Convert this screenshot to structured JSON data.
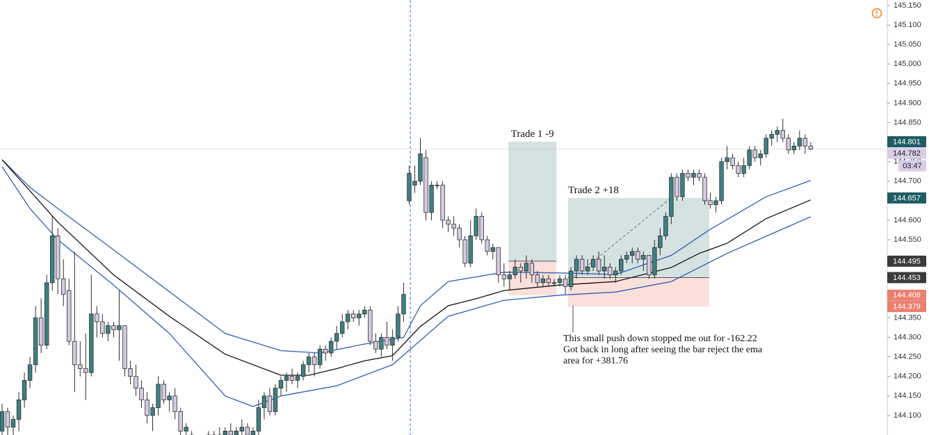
{
  "chart_data": {
    "type": "candlestick",
    "up_color": "#3f8084",
    "down_color": "#d6c9e2",
    "outline_color": "#2b2b2b",
    "candles": [
      [
        144.06,
        144.13,
        144.05,
        144.11
      ],
      [
        144.11,
        144.12,
        144.05,
        144.07
      ],
      [
        144.07,
        144.1,
        144.05,
        144.09
      ],
      [
        144.09,
        144.16,
        144.06,
        144.14
      ],
      [
        144.14,
        144.21,
        144.12,
        144.19
      ],
      [
        144.19,
        144.25,
        144.17,
        144.23
      ],
      [
        144.23,
        144.38,
        144.21,
        144.35
      ],
      [
        144.35,
        144.4,
        144.26,
        144.28
      ],
      [
        144.28,
        144.46,
        144.27,
        144.44
      ],
      [
        144.44,
        144.61,
        144.42,
        144.56
      ],
      [
        144.56,
        144.58,
        144.41,
        144.45
      ],
      [
        144.45,
        144.5,
        144.38,
        144.41
      ],
      [
        144.42,
        144.45,
        144.28,
        144.29
      ],
      [
        144.29,
        144.52,
        144.16,
        144.23
      ],
      [
        144.23,
        144.29,
        144.2,
        144.22
      ],
      [
        144.22,
        144.31,
        144.14,
        144.21
      ],
      [
        144.21,
        144.46,
        144.2,
        144.36
      ],
      [
        144.36,
        144.38,
        144.3,
        144.34
      ],
      [
        144.34,
        144.36,
        144.3,
        144.31
      ],
      [
        144.31,
        144.34,
        144.29,
        144.33
      ],
      [
        144.33,
        144.34,
        144.3,
        144.32
      ],
      [
        144.32,
        144.42,
        144.24,
        144.33
      ],
      [
        144.33,
        144.33,
        144.2,
        144.22
      ],
      [
        144.22,
        144.24,
        144.18,
        144.2
      ],
      [
        144.2,
        144.23,
        144.15,
        144.17
      ],
      [
        144.17,
        144.19,
        144.12,
        144.14
      ],
      [
        144.14,
        144.16,
        144.08,
        144.1
      ],
      [
        144.1,
        144.13,
        144.06,
        144.12
      ],
      [
        144.12,
        144.2,
        144.1,
        144.18
      ],
      [
        144.18,
        144.19,
        144.13,
        144.14
      ],
      [
        144.14,
        144.16,
        144.11,
        144.15
      ],
      [
        144.15,
        144.17,
        144.09,
        144.11
      ],
      [
        144.11,
        144.12,
        144.05,
        144.06
      ],
      [
        144.06,
        144.08,
        144.04,
        144.07
      ],
      [
        144.05,
        144.06,
        144.03,
        144.04
      ],
      [
        144.04,
        144.05,
        144.02,
        144.03
      ],
      [
        144.03,
        144.05,
        144.02,
        144.04
      ],
      [
        144.04,
        144.06,
        144.03,
        144.05
      ],
      [
        144.05,
        144.06,
        144.03,
        144.04
      ],
      [
        144.04,
        144.07,
        144.03,
        144.05
      ],
      [
        144.05,
        144.07,
        144.03,
        144.06
      ],
      [
        144.06,
        144.08,
        144.04,
        144.05
      ],
      [
        144.05,
        144.07,
        144.03,
        144.06
      ],
      [
        144.06,
        144.09,
        144.05,
        144.07
      ],
      [
        144.07,
        144.08,
        144.04,
        144.05
      ],
      [
        144.05,
        144.07,
        144.03,
        144.06
      ],
      [
        144.06,
        144.14,
        144.05,
        144.12
      ],
      [
        144.12,
        144.16,
        144.09,
        144.15
      ],
      [
        144.15,
        144.17,
        144.1,
        144.11
      ],
      [
        144.11,
        144.18,
        144.1,
        144.17
      ],
      [
        144.17,
        144.2,
        144.15,
        144.19
      ],
      [
        144.19,
        144.21,
        144.16,
        144.2
      ],
      [
        144.2,
        144.22,
        144.18,
        144.19
      ],
      [
        144.19,
        144.21,
        144.17,
        144.2
      ],
      [
        144.2,
        144.24,
        144.19,
        144.23
      ],
      [
        144.23,
        144.26,
        144.21,
        144.25
      ],
      [
        144.25,
        144.26,
        144.2,
        144.23
      ],
      [
        144.23,
        144.28,
        144.22,
        144.27
      ],
      [
        144.27,
        144.28,
        144.24,
        144.26
      ],
      [
        144.26,
        144.3,
        144.25,
        144.29
      ],
      [
        144.29,
        144.33,
        144.27,
        144.31
      ],
      [
        144.31,
        144.36,
        144.3,
        144.34
      ],
      [
        144.34,
        144.37,
        144.32,
        144.36
      ],
      [
        144.36,
        144.37,
        144.34,
        144.35
      ],
      [
        144.35,
        144.37,
        144.33,
        144.36
      ],
      [
        144.36,
        144.38,
        144.35,
        144.37
      ],
      [
        144.37,
        144.38,
        144.28,
        144.29
      ],
      [
        144.29,
        144.31,
        144.26,
        144.27
      ],
      [
        144.27,
        144.31,
        144.25,
        144.3
      ],
      [
        144.3,
        144.34,
        144.27,
        144.28
      ],
      [
        144.28,
        144.32,
        144.24,
        144.3
      ],
      [
        144.3,
        144.38,
        144.29,
        144.36
      ],
      [
        144.36,
        144.44,
        144.34,
        144.41
      ],
      [
        144.65,
        144.74,
        144.64,
        144.72
      ],
      [
        144.69,
        144.74,
        144.67,
        144.7
      ],
      [
        144.7,
        144.81,
        144.69,
        144.77
      ],
      [
        144.76,
        144.78,
        144.6,
        144.62
      ],
      [
        144.62,
        144.7,
        144.6,
        144.69
      ],
      [
        144.69,
        144.7,
        144.68,
        144.69
      ],
      [
        144.69,
        144.7,
        144.58,
        144.6
      ],
      [
        144.6,
        144.61,
        144.57,
        144.59
      ],
      [
        144.59,
        144.61,
        144.56,
        144.58
      ],
      [
        144.58,
        144.59,
        144.53,
        144.55
      ],
      [
        144.55,
        144.56,
        144.48,
        144.49
      ],
      [
        144.49,
        144.6,
        144.48,
        144.56
      ],
      [
        144.56,
        144.63,
        144.55,
        144.61
      ],
      [
        144.61,
        144.62,
        144.54,
        144.55
      ],
      [
        144.55,
        144.56,
        144.51,
        144.52
      ],
      [
        144.52,
        144.54,
        144.5,
        144.53
      ],
      [
        144.53,
        144.53,
        144.44,
        144.46
      ],
      [
        144.46,
        144.49,
        144.43,
        144.45
      ],
      [
        144.45,
        144.47,
        144.42,
        144.46
      ],
      [
        144.46,
        144.5,
        144.45,
        144.48
      ],
      [
        144.48,
        144.49,
        144.44,
        144.47
      ],
      [
        144.47,
        144.51,
        144.45,
        144.49
      ],
      [
        144.49,
        144.5,
        144.44,
        144.46
      ],
      [
        144.46,
        144.47,
        144.43,
        144.44
      ],
      [
        144.44,
        144.46,
        144.43,
        144.45
      ],
      [
        144.45,
        144.46,
        144.43,
        144.44
      ],
      [
        144.44,
        144.45,
        144.43,
        144.44
      ],
      [
        144.44,
        144.46,
        144.43,
        144.45
      ],
      [
        144.45,
        144.46,
        144.41,
        144.43
      ],
      [
        144.43,
        144.48,
        144.42,
        144.47
      ],
      [
        144.47,
        144.51,
        144.45,
        144.5
      ],
      [
        144.5,
        144.51,
        144.46,
        144.47
      ],
      [
        144.47,
        144.5,
        144.46,
        144.48
      ],
      [
        144.48,
        144.51,
        144.47,
        144.5
      ],
      [
        144.5,
        144.52,
        144.46,
        144.47
      ],
      [
        144.47,
        144.51,
        144.45,
        144.48
      ],
      [
        144.48,
        144.49,
        144.45,
        144.46
      ],
      [
        144.46,
        144.48,
        144.44,
        144.47
      ],
      [
        144.47,
        144.51,
        144.46,
        144.5
      ],
      [
        144.5,
        144.52,
        144.49,
        144.51
      ],
      [
        144.51,
        144.53,
        144.49,
        144.52
      ],
      [
        144.52,
        144.53,
        144.49,
        144.5
      ],
      [
        144.5,
        144.52,
        144.47,
        144.51
      ],
      [
        144.51,
        144.51,
        144.45,
        144.46
      ],
      [
        144.46,
        144.55,
        144.45,
        144.53
      ],
      [
        144.53,
        144.58,
        144.51,
        144.56
      ],
      [
        144.56,
        144.62,
        144.55,
        144.61
      ],
      [
        144.61,
        144.72,
        144.59,
        144.71
      ],
      [
        144.71,
        144.72,
        144.65,
        144.66
      ],
      [
        144.66,
        144.73,
        144.65,
        144.72
      ],
      [
        144.72,
        144.73,
        144.7,
        144.71
      ],
      [
        144.71,
        144.73,
        144.69,
        144.72
      ],
      [
        144.72,
        144.73,
        144.7,
        144.71
      ],
      [
        144.71,
        144.72,
        144.64,
        144.65
      ],
      [
        144.65,
        144.67,
        144.63,
        144.64
      ],
      [
        144.64,
        144.66,
        144.62,
        144.65
      ],
      [
        144.65,
        144.76,
        144.64,
        144.75
      ],
      [
        144.75,
        144.79,
        144.73,
        144.76
      ],
      [
        144.76,
        144.77,
        144.73,
        144.74
      ],
      [
        144.74,
        144.75,
        144.71,
        144.72
      ],
      [
        144.72,
        144.76,
        144.71,
        144.74
      ],
      [
        144.74,
        144.79,
        144.73,
        144.78
      ],
      [
        144.78,
        144.79,
        144.75,
        144.76
      ],
      [
        144.76,
        144.78,
        144.74,
        144.77
      ],
      [
        144.77,
        144.82,
        144.76,
        144.81
      ],
      [
        144.81,
        144.83,
        144.79,
        144.82
      ],
      [
        144.82,
        144.84,
        144.8,
        144.83
      ],
      [
        144.83,
        144.86,
        144.8,
        144.81
      ],
      [
        144.81,
        144.82,
        144.77,
        144.78
      ],
      [
        144.78,
        144.8,
        144.77,
        144.79
      ],
      [
        144.79,
        144.83,
        144.78,
        144.81
      ],
      [
        144.81,
        144.82,
        144.77,
        144.79
      ],
      [
        144.79,
        144.8,
        144.78,
        144.782
      ]
    ],
    "series": [
      {
        "name": "EMA upper",
        "color": "#2f5fb3",
        "x": [
          0,
          5,
          10,
          20,
          30,
          40,
          50,
          57,
          65,
          72,
          75,
          80,
          90,
          100,
          110,
          120,
          127,
          137,
          145
        ],
        "values": [
          144.755,
          144.684,
          144.63,
          144.524,
          144.417,
          144.31,
          144.266,
          144.26,
          144.283,
          144.3,
          144.381,
          144.443,
          144.467,
          144.465,
          144.461,
          144.51,
          144.577,
          144.66,
          144.702
        ]
      },
      {
        "name": "EMA",
        "color": "#111111",
        "x": [
          0,
          10,
          20,
          30,
          40,
          50,
          55,
          60,
          65,
          70,
          75,
          80,
          85,
          90,
          100,
          110,
          120,
          125,
          130,
          137,
          145
        ],
        "values": [
          144.755,
          144.595,
          144.46,
          144.354,
          144.257,
          144.203,
          144.203,
          144.22,
          144.24,
          144.253,
          144.328,
          144.381,
          144.399,
          144.42,
          144.434,
          144.443,
          144.479,
          144.515,
          144.541,
          144.604,
          144.652
        ]
      },
      {
        "name": "EMA lower",
        "color": "#2f5fb3",
        "x": [
          0,
          5,
          10,
          20,
          30,
          40,
          45,
          50,
          60,
          70,
          75,
          80,
          90,
          100,
          110,
          120,
          130,
          137,
          145
        ],
        "values": [
          144.737,
          144.63,
          144.55,
          144.434,
          144.31,
          144.15,
          144.123,
          144.15,
          144.176,
          144.23,
          144.292,
          144.354,
          144.395,
          144.408,
          144.416,
          144.443,
          144.515,
          144.559,
          144.609
        ]
      }
    ],
    "ylim": [
      144.05,
      145.164
    ],
    "yticks": [
      {
        "value": 144.1,
        "label": "144.100"
      },
      {
        "value": 144.15,
        "label": "144.150"
      },
      {
        "value": 144.2,
        "label": "144.200"
      },
      {
        "value": 144.25,
        "label": "144.250"
      },
      {
        "value": 144.3,
        "label": "144.300"
      },
      {
        "value": 144.35,
        "label": "144.350"
      },
      {
        "value": 144.4,
        "label": "144.400"
      },
      {
        "value": 144.45,
        "label": "144.450"
      },
      {
        "value": 144.5,
        "label": "144.500"
      },
      {
        "value": 144.55,
        "label": "144.550"
      },
      {
        "value": 144.6,
        "label": "144.600"
      },
      {
        "value": 144.65,
        "label": "144.650"
      },
      {
        "value": 144.7,
        "label": "144.700"
      },
      {
        "value": 144.75,
        "label": "144.750"
      },
      {
        "value": 144.8,
        "label": "144.800"
      },
      {
        "value": 144.85,
        "label": "144.850"
      },
      {
        "value": 144.9,
        "label": "144.900"
      },
      {
        "value": 144.95,
        "label": "144.950"
      },
      {
        "value": 145,
        "label": "145.000"
      },
      {
        "value": 145.05,
        "label": "145.050"
      },
      {
        "value": 145.1,
        "label": "145.100"
      },
      {
        "value": 145.15,
        "label": "145.150"
      }
    ],
    "current_price": 144.782,
    "current_price_color": "#d9cde8",
    "timer": "03:47",
    "profit_color": "#cfdfde",
    "loss_color": "#fadcd7",
    "target_badge_color": "#1f5c63",
    "entry_badge_color": "#3b3b3b",
    "stop_badge_color": "#ec7f6e",
    "trades": [
      {
        "label": "Trade 1 -9",
        "target": 144.801,
        "entry": 144.495,
        "stop": 144.408
      },
      {
        "label": "Trade 2 +18",
        "target": 144.657,
        "entry": 144.453,
        "stop": 144.379
      }
    ],
    "annotation": [
      "This small push down stopped me out for -162.22",
      "Got back in long after seeing the bar reject the ema",
      "area for +381.76"
    ]
  }
}
